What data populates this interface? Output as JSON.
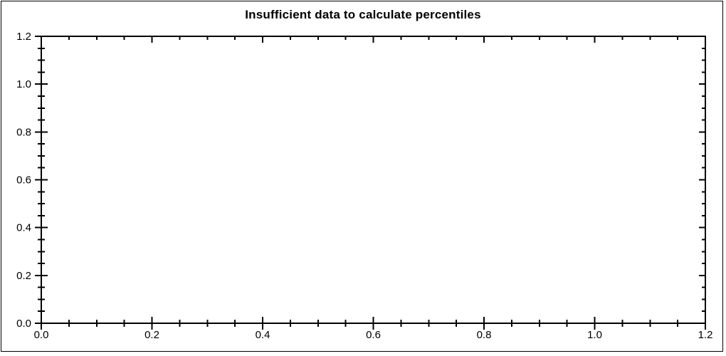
{
  "chart_data": {
    "type": "scatter",
    "title": "Insufficient data to calculate percentiles",
    "series": [],
    "x_tick_labels": [
      "0.0",
      "0.2",
      "0.4",
      "0.6",
      "0.8",
      "1.0",
      "1.2"
    ],
    "y_tick_labels": [
      "0.0",
      "0.2",
      "0.4",
      "0.6",
      "0.8",
      "1.0",
      "1.2"
    ],
    "xlim": [
      0,
      1.2
    ],
    "ylim": [
      0,
      1.2
    ],
    "major_tick_interval": 0.2,
    "minor_tick_interval": 0.05,
    "grid": false
  },
  "colors": {
    "axis": "#000000",
    "text": "#000000",
    "background": "#ffffff"
  }
}
